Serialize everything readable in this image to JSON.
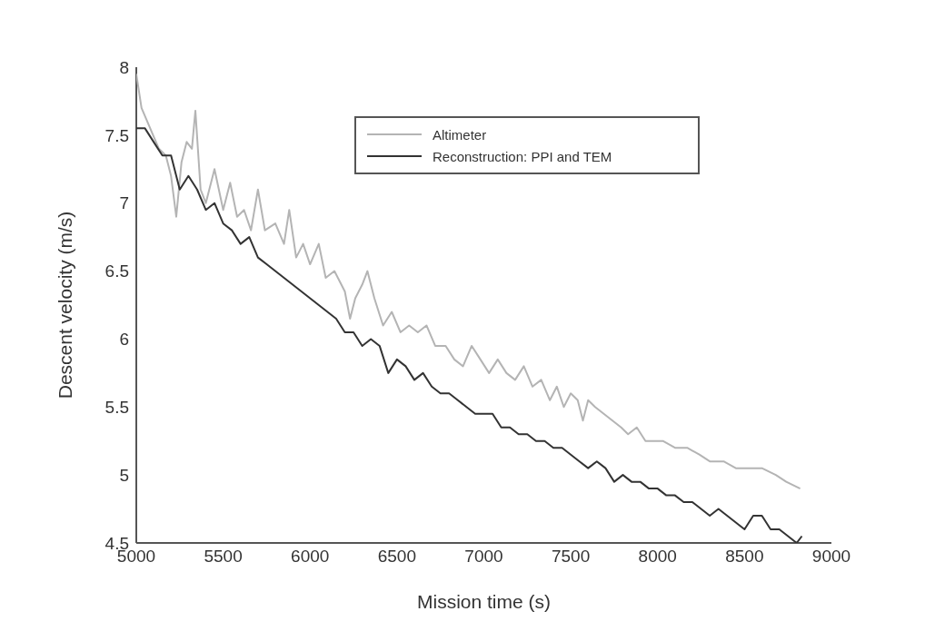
{
  "chart_data": {
    "type": "line",
    "xlabel": "Mission time (s)",
    "ylabel": "Descent velocity (m/s)",
    "xlim": [
      5000,
      9000
    ],
    "xticks": [
      5000,
      5500,
      6000,
      6500,
      7000,
      7500,
      8000,
      8500,
      9000
    ],
    "ylim": [
      4.5,
      8
    ],
    "yticks": [
      4.5,
      5,
      5.5,
      6,
      6.5,
      7,
      7.5,
      8
    ],
    "grid": false,
    "legend": "top",
    "marker": "none",
    "line_style": "solid",
    "series": [
      {
        "name": "Altimeter",
        "color": "#b4b4b4",
        "x": [
          5000,
          5030,
          5080,
          5130,
          5170,
          5200,
          5230,
          5260,
          5290,
          5320,
          5340,
          5370,
          5400,
          5450,
          5500,
          5540,
          5580,
          5620,
          5660,
          5700,
          5740,
          5800,
          5850,
          5880,
          5920,
          5960,
          6000,
          6050,
          6090,
          6140,
          6200,
          6230,
          6260,
          6300,
          6330,
          6370,
          6420,
          6470,
          6520,
          6570,
          6620,
          6670,
          6720,
          6780,
          6830,
          6880,
          6930,
          6980,
          7030,
          7080,
          7130,
          7180,
          7230,
          7280,
          7330,
          7380,
          7420,
          7460,
          7500,
          7540,
          7570,
          7600,
          7640,
          7690,
          7740,
          7790,
          7830,
          7880,
          7930,
          7980,
          8030,
          8100,
          8170,
          8240,
          8300,
          8380,
          8450,
          8520,
          8600,
          8680,
          8740,
          8820
        ],
        "values": [
          7.95,
          7.7,
          7.55,
          7.4,
          7.35,
          7.2,
          6.9,
          7.3,
          7.45,
          7.4,
          7.68,
          7.1,
          7.0,
          7.25,
          6.95,
          7.15,
          6.9,
          6.95,
          6.8,
          7.1,
          6.8,
          6.85,
          6.7,
          6.95,
          6.6,
          6.7,
          6.55,
          6.7,
          6.45,
          6.5,
          6.35,
          6.15,
          6.3,
          6.4,
          6.5,
          6.3,
          6.1,
          6.2,
          6.05,
          6.1,
          6.05,
          6.1,
          5.95,
          5.95,
          5.85,
          5.8,
          5.95,
          5.85,
          5.75,
          5.85,
          5.75,
          5.7,
          5.8,
          5.65,
          5.7,
          5.55,
          5.65,
          5.5,
          5.6,
          5.55,
          5.4,
          5.55,
          5.5,
          5.45,
          5.4,
          5.35,
          5.3,
          5.35,
          5.25,
          5.25,
          5.25,
          5.2,
          5.2,
          5.15,
          5.1,
          5.1,
          5.05,
          5.05,
          5.05,
          5.0,
          4.95,
          4.9
        ]
      },
      {
        "name": "Reconstruction: PPI and TEM",
        "color": "#333333",
        "x": [
          5000,
          5050,
          5100,
          5150,
          5200,
          5250,
          5300,
          5350,
          5400,
          5450,
          5500,
          5550,
          5600,
          5650,
          5700,
          5750,
          5800,
          5850,
          5900,
          5950,
          6000,
          6050,
          6100,
          6150,
          6200,
          6250,
          6300,
          6350,
          6400,
          6450,
          6500,
          6550,
          6600,
          6650,
          6700,
          6750,
          6800,
          6850,
          6900,
          6950,
          7000,
          7050,
          7100,
          7150,
          7200,
          7250,
          7300,
          7350,
          7400,
          7450,
          7500,
          7550,
          7600,
          7650,
          7700,
          7750,
          7800,
          7850,
          7900,
          7950,
          8000,
          8050,
          8100,
          8150,
          8200,
          8250,
          8300,
          8350,
          8400,
          8450,
          8500,
          8550,
          8600,
          8650,
          8700,
          8750,
          8800,
          8830
        ],
        "values": [
          7.55,
          7.55,
          7.45,
          7.35,
          7.35,
          7.1,
          7.2,
          7.1,
          6.95,
          7.0,
          6.85,
          6.8,
          6.7,
          6.75,
          6.6,
          6.55,
          6.5,
          6.45,
          6.4,
          6.35,
          6.3,
          6.25,
          6.2,
          6.15,
          6.05,
          6.05,
          5.95,
          6.0,
          5.95,
          5.75,
          5.85,
          5.8,
          5.7,
          5.75,
          5.65,
          5.6,
          5.6,
          5.55,
          5.5,
          5.45,
          5.45,
          5.45,
          5.35,
          5.35,
          5.3,
          5.3,
          5.25,
          5.25,
          5.2,
          5.2,
          5.15,
          5.1,
          5.05,
          5.1,
          5.05,
          4.95,
          5.0,
          4.95,
          4.95,
          4.9,
          4.9,
          4.85,
          4.85,
          4.8,
          4.8,
          4.75,
          4.7,
          4.75,
          4.7,
          4.65,
          4.6,
          4.7,
          4.7,
          4.6,
          4.6,
          4.55,
          4.5,
          4.55
        ]
      }
    ]
  }
}
